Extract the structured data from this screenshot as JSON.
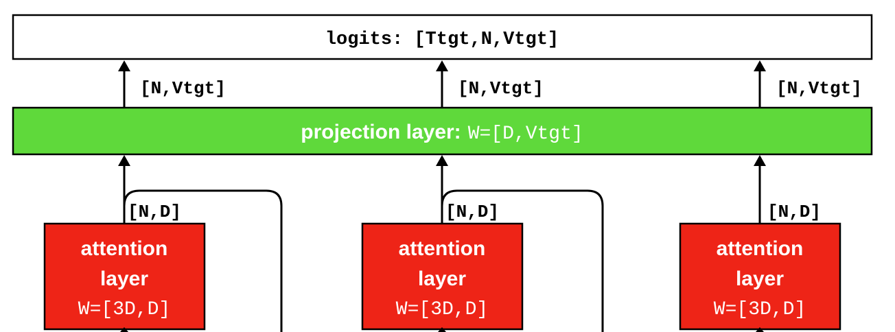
{
  "logits_box": {
    "label": "logits: [Ttgt,N,Vtgt]"
  },
  "projection": {
    "title": "projection layer:",
    "weights": "W=[D,Vtgt]",
    "fill_color": "#5fd93b"
  },
  "projection_outputs": [
    {
      "shape": "[N,Vtgt]"
    },
    {
      "shape": "[N,Vtgt]"
    },
    {
      "shape": "[N,Vtgt]"
    }
  ],
  "attention_layers": [
    {
      "line1": "attention",
      "line2": "layer",
      "weights": "W=[3D,D]",
      "output_shape": "[N,D]"
    },
    {
      "line1": "attention",
      "line2": "layer",
      "weights": "W=[3D,D]",
      "output_shape": "[N,D]"
    },
    {
      "line1": "attention",
      "line2": "layer",
      "weights": "W=[3D,D]",
      "output_shape": "[N,D]"
    }
  ],
  "colors": {
    "attention_fill": "#ee2417",
    "attention_stroke": "#000000",
    "line": "#000000",
    "text_on_red": "#ffffff"
  }
}
